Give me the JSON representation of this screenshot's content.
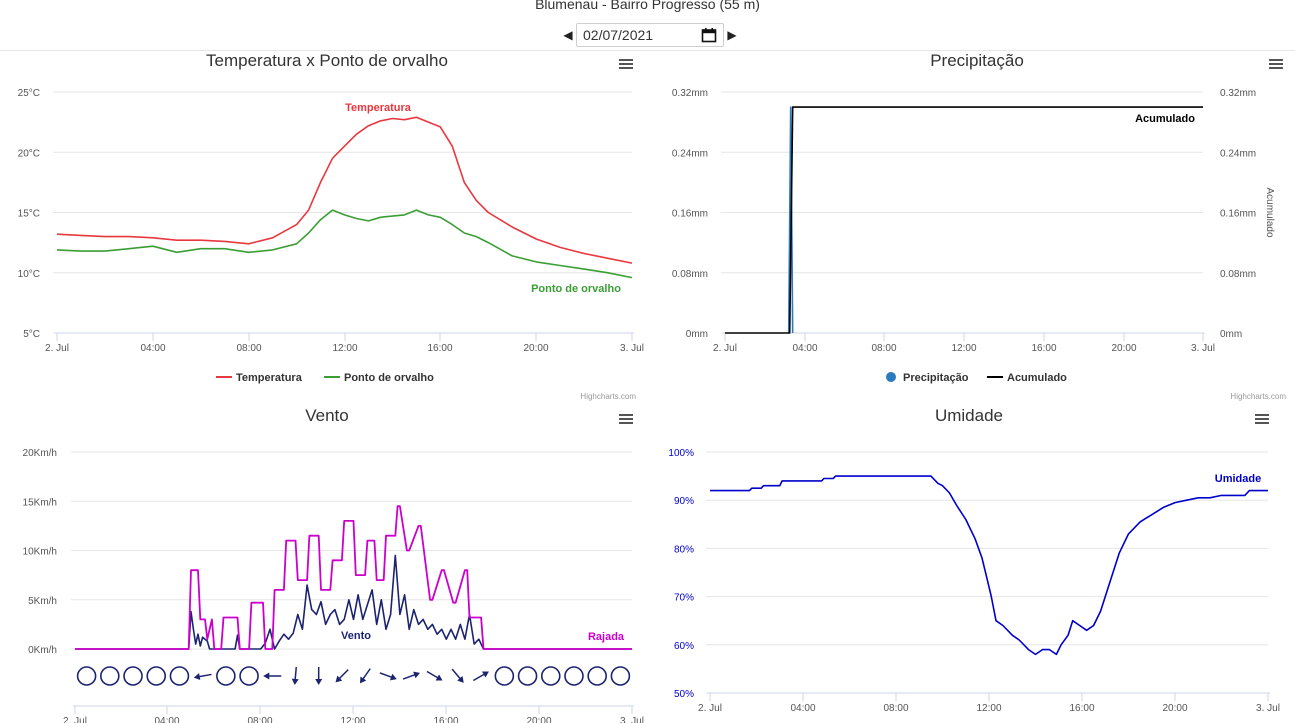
{
  "header": {
    "title": "Blumenau - Bairro Progresso (55 m)",
    "date_value": "02/07/2021"
  },
  "credits": "Highcharts.com",
  "chart_data": [
    {
      "id": "temp",
      "type": "line",
      "title": "Temperatura x Ponto de orvalho",
      "y_ticks": [
        "25°C",
        "20°C",
        "15°C",
        "10°C",
        "5°C"
      ],
      "ylim": [
        5,
        25
      ],
      "x_ticks": [
        "2. Jul",
        "04:00",
        "08:00",
        "12:00",
        "16:00",
        "20:00",
        "3. Jul"
      ],
      "xlim": [
        0,
        24
      ],
      "legend": [
        "Temperatura",
        "Ponto de orvalho"
      ],
      "series": [
        {
          "name": "Temperatura",
          "color": "#e8383f",
          "label": "Temperatura",
          "x": [
            0,
            1,
            2,
            3,
            4,
            5,
            6,
            7,
            8,
            9,
            10,
            10.5,
            11,
            11.5,
            12,
            12.5,
            13,
            13.5,
            14,
            14.5,
            15,
            15.5,
            16,
            16.5,
            17,
            17.5,
            18,
            19,
            20,
            21,
            22,
            23,
            24
          ],
          "y": [
            13.2,
            13.1,
            13.0,
            13.0,
            12.9,
            12.7,
            12.7,
            12.6,
            12.4,
            12.9,
            14.0,
            15.2,
            17.5,
            19.5,
            20.5,
            21.5,
            22.2,
            22.6,
            22.8,
            22.7,
            22.9,
            22.5,
            22.1,
            20.5,
            17.5,
            16.0,
            15.0,
            13.8,
            12.8,
            12.1,
            11.6,
            11.2,
            10.8
          ]
        },
        {
          "name": "Ponto de orvalho",
          "color": "#3a9e35",
          "label": "Ponto de orvalho",
          "x": [
            0,
            1,
            2,
            3,
            4,
            5,
            6,
            7,
            8,
            9,
            10,
            10.5,
            11,
            11.5,
            12,
            12.5,
            13,
            13.5,
            14,
            14.5,
            15,
            15.5,
            16,
            16.5,
            17,
            17.5,
            18,
            19,
            20,
            21,
            22,
            23,
            24
          ],
          "y": [
            11.9,
            11.8,
            11.8,
            12.0,
            12.2,
            11.7,
            12.0,
            12.0,
            11.7,
            11.9,
            12.4,
            13.3,
            14.4,
            15.2,
            14.8,
            14.5,
            14.3,
            14.6,
            14.7,
            14.8,
            15.2,
            14.8,
            14.6,
            14.0,
            13.3,
            13.0,
            12.5,
            11.4,
            10.9,
            10.6,
            10.3,
            10.0,
            9.6
          ]
        }
      ]
    },
    {
      "id": "prec",
      "type": "line",
      "title": "Precipitação",
      "y_ticks": [
        "0.32mm",
        "0.24mm",
        "0.16mm",
        "0.08mm",
        "0mm"
      ],
      "ylim": [
        0,
        0.32
      ],
      "y2_label": "Acumulado",
      "x_ticks": [
        "2. Jul",
        "04:00",
        "08:00",
        "12:00",
        "16:00",
        "20:00",
        "3. Jul"
      ],
      "xlim": [
        0,
        24
      ],
      "legend": [
        "Precipitação",
        "Acumulado"
      ],
      "series": [
        {
          "name": "Precipitação",
          "color": "#2b7bbf",
          "x": [
            3.2,
            3.3,
            3.4
          ],
          "y": [
            0,
            0.3,
            0
          ]
        },
        {
          "name": "Acumulado",
          "color": "#000000",
          "label": "Acumulado",
          "x": [
            0,
            3.25,
            3.4,
            24
          ],
          "y": [
            0,
            0,
            0.3,
            0.3
          ]
        }
      ]
    },
    {
      "id": "wind",
      "type": "line",
      "title": "Vento",
      "y_ticks": [
        "20Km/h",
        "15Km/h",
        "10Km/h",
        "5Km/h",
        "0Km/h"
      ],
      "ylim": [
        0,
        20
      ],
      "x_ticks": [
        "2. Jul",
        "04:00",
        "08:00",
        "12:00",
        "16:00",
        "20:00",
        "3. Jul"
      ],
      "xlim": [
        0,
        24
      ],
      "series": [
        {
          "name": "Vento",
          "color": "#1c2470",
          "label": "Vento",
          "x": [
            0,
            4.9,
            5.0,
            5.1,
            5.2,
            5.3,
            5.4,
            5.5,
            5.7,
            5.8,
            6.0,
            6.9,
            7.0,
            7.1,
            7.3,
            8.0,
            8.2,
            8.4,
            8.6,
            8.8,
            9.0,
            9.2,
            9.4,
            9.6,
            9.8,
            10.0,
            10.2,
            10.4,
            10.6,
            10.8,
            11.0,
            11.2,
            11.4,
            11.6,
            11.8,
            12.0,
            12.2,
            12.4,
            12.6,
            12.8,
            13.0,
            13.2,
            13.4,
            13.6,
            13.8,
            14.0,
            14.2,
            14.4,
            14.6,
            14.8,
            15.0,
            15.2,
            15.4,
            15.6,
            15.8,
            16.0,
            16.2,
            16.4,
            16.6,
            16.8,
            17.0,
            17.2,
            17.4,
            17.6,
            24
          ],
          "y": [
            0,
            0,
            3.8,
            2.0,
            0.5,
            1.5,
            0.3,
            1.2,
            0.8,
            0,
            0,
            0,
            1.4,
            0,
            0,
            0,
            0.6,
            2.0,
            0,
            0.8,
            1.5,
            1.0,
            1.6,
            3.5,
            2.0,
            6.5,
            4.0,
            3.5,
            4.8,
            2.5,
            3.5,
            4.0,
            2.5,
            3.0,
            5.0,
            3.0,
            5.5,
            3.0,
            4.5,
            6.0,
            2.5,
            5.0,
            2.0,
            3.5,
            9.5,
            3.5,
            5.5,
            2.0,
            4.0,
            2.5,
            3.0,
            2.0,
            2.5,
            1.5,
            2.0,
            1.0,
            2.0,
            1.0,
            2.5,
            1.0,
            3.5,
            0.5,
            1.0,
            0,
            0
          ]
        },
        {
          "name": "Rajada",
          "color": "#cc00cc",
          "label": "Rajada",
          "x": [
            0,
            4.9,
            5.0,
            5.3,
            5.4,
            5.6,
            5.7,
            5.9,
            6.0,
            6.3,
            6.4,
            7.0,
            7.1,
            7.5,
            7.6,
            8.1,
            8.2,
            8.5,
            8.6,
            9.0,
            9.1,
            9.5,
            9.6,
            10.0,
            10.1,
            10.5,
            10.6,
            11.0,
            11.1,
            11.5,
            11.6,
            12.0,
            12.1,
            12.5,
            12.6,
            12.9,
            13.0,
            13.3,
            13.4,
            13.8,
            13.9,
            14.0,
            14.3,
            14.4,
            14.8,
            14.9,
            15.3,
            15.4,
            15.8,
            15.9,
            16.3,
            16.4,
            16.8,
            16.9,
            17.0,
            17.5,
            17.6,
            24
          ],
          "y": [
            0,
            0,
            8.0,
            8.0,
            3.0,
            3.0,
            1.0,
            3.0,
            0,
            0,
            3.2,
            3.2,
            0,
            0,
            4.7,
            4.7,
            0,
            0,
            6.0,
            6.0,
            11.0,
            11.0,
            7.0,
            7.0,
            11.5,
            11.5,
            6.0,
            6.0,
            9.0,
            9.0,
            13.0,
            13.0,
            7.5,
            7.5,
            11.0,
            11.0,
            7.0,
            7.0,
            11.5,
            11.5,
            14.5,
            14.5,
            10.0,
            10.0,
            12.5,
            12.5,
            5.0,
            5.0,
            8.0,
            8.0,
            4.7,
            4.7,
            8.0,
            8.0,
            3.2,
            3.2,
            0,
            0
          ]
        }
      ],
      "direction_markers": [
        {
          "x": 0.5,
          "dir": null
        },
        {
          "x": 1.5,
          "dir": null
        },
        {
          "x": 2.5,
          "dir": null
        },
        {
          "x": 3.5,
          "dir": null
        },
        {
          "x": 4.5,
          "dir": null
        },
        {
          "x": 5.5,
          "dir": 260
        },
        {
          "x": 6.5,
          "dir": null
        },
        {
          "x": 7.5,
          "dir": null
        },
        {
          "x": 8.5,
          "dir": 270
        },
        {
          "x": 9.5,
          "dir": 185
        },
        {
          "x": 10.5,
          "dir": 180
        },
        {
          "x": 11.5,
          "dir": 225
        },
        {
          "x": 12.5,
          "dir": 215
        },
        {
          "x": 13.5,
          "dir": 110
        },
        {
          "x": 14.5,
          "dir": 70
        },
        {
          "x": 15.5,
          "dir": 120
        },
        {
          "x": 16.5,
          "dir": 140
        },
        {
          "x": 17.5,
          "dir": 60
        },
        {
          "x": 18.5,
          "dir": null
        },
        {
          "x": 19.5,
          "dir": null
        },
        {
          "x": 20.5,
          "dir": null
        },
        {
          "x": 21.5,
          "dir": null
        },
        {
          "x": 22.5,
          "dir": null
        },
        {
          "x": 23.5,
          "dir": null
        }
      ]
    },
    {
      "id": "hum",
      "type": "line",
      "title": "Umidade",
      "y_ticks": [
        "100%",
        "90%",
        "80%",
        "70%",
        "60%",
        "50%"
      ],
      "ylim": [
        50,
        100
      ],
      "x_ticks": [
        "2. Jul",
        "04:00",
        "08:00",
        "12:00",
        "16:00",
        "20:00",
        "3. Jul"
      ],
      "xlim": [
        0,
        24
      ],
      "series": [
        {
          "name": "Umidade",
          "color": "#0000cc",
          "label": "Umidade",
          "x": [
            0,
            1.7,
            1.8,
            2.2,
            2.3,
            3.0,
            3.1,
            4.8,
            4.9,
            5.3,
            5.4,
            9.5,
            9.8,
            10.0,
            10.3,
            10.6,
            11.0,
            11.4,
            11.7,
            11.9,
            12.1,
            12.3,
            12.6,
            13.0,
            13.3,
            13.7,
            14.0,
            14.3,
            14.6,
            14.9,
            15.1,
            15.4,
            15.6,
            15.9,
            16.2,
            16.5,
            16.8,
            17.2,
            17.6,
            18.0,
            18.5,
            19.0,
            19.5,
            20.0,
            20.5,
            21.0,
            21.5,
            22.0,
            22.5,
            23.0,
            23.2,
            24
          ],
          "y": [
            92,
            92,
            92.5,
            92.5,
            93,
            93,
            94,
            94,
            94.5,
            94.5,
            95,
            95,
            93.5,
            93,
            91.5,
            89,
            86,
            82,
            78,
            74,
            70,
            65,
            64,
            62,
            61,
            59,
            58,
            59,
            59,
            58,
            60,
            62,
            65,
            64,
            63,
            64,
            67,
            73,
            79,
            83,
            85.5,
            87,
            88.5,
            89.5,
            90,
            90.5,
            90.5,
            91,
            91,
            91,
            92,
            92
          ]
        }
      ]
    }
  ]
}
